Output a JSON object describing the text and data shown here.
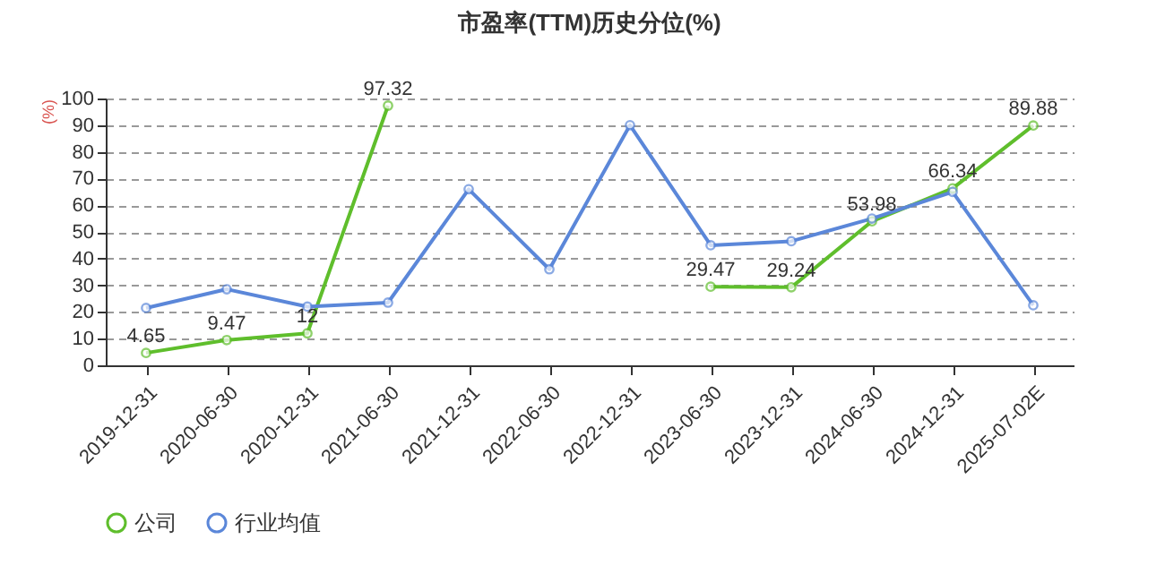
{
  "chart_data": {
    "type": "line",
    "title": "市盈率(TTM)历史分位(%)",
    "ylabel": "(%)",
    "categories": [
      "2019-12-31",
      "2020-06-30",
      "2020-12-31",
      "2021-06-30",
      "2021-12-31",
      "2022-06-30",
      "2022-12-31",
      "2023-06-30",
      "2023-12-31",
      "2024-06-30",
      "2024-12-31",
      "2025-07-02E"
    ],
    "series": [
      {
        "name": "公司",
        "color": "#5fbe2c",
        "values": [
          4.65,
          9.47,
          12,
          97.32,
          null,
          null,
          null,
          29.47,
          29.24,
          53.98,
          66.34,
          89.88
        ],
        "value_labels": [
          "4.65",
          "9.47",
          "12",
          "97.32",
          null,
          null,
          null,
          "29.47",
          "29.24",
          "53.98",
          "66.34",
          "89.88"
        ]
      },
      {
        "name": "行业均值",
        "color": "#5b87d9",
        "values": [
          21.5,
          28.5,
          22,
          23.5,
          66,
          36,
          90,
          45,
          46.5,
          55,
          65,
          22.5
        ]
      }
    ],
    "ylim": [
      0,
      100
    ],
    "yticks": [
      0,
      10,
      20,
      30,
      40,
      50,
      60,
      70,
      80,
      90,
      100
    ],
    "grid": "y",
    "legend": "bottom",
    "marker": "circle",
    "line_style": "solid"
  }
}
